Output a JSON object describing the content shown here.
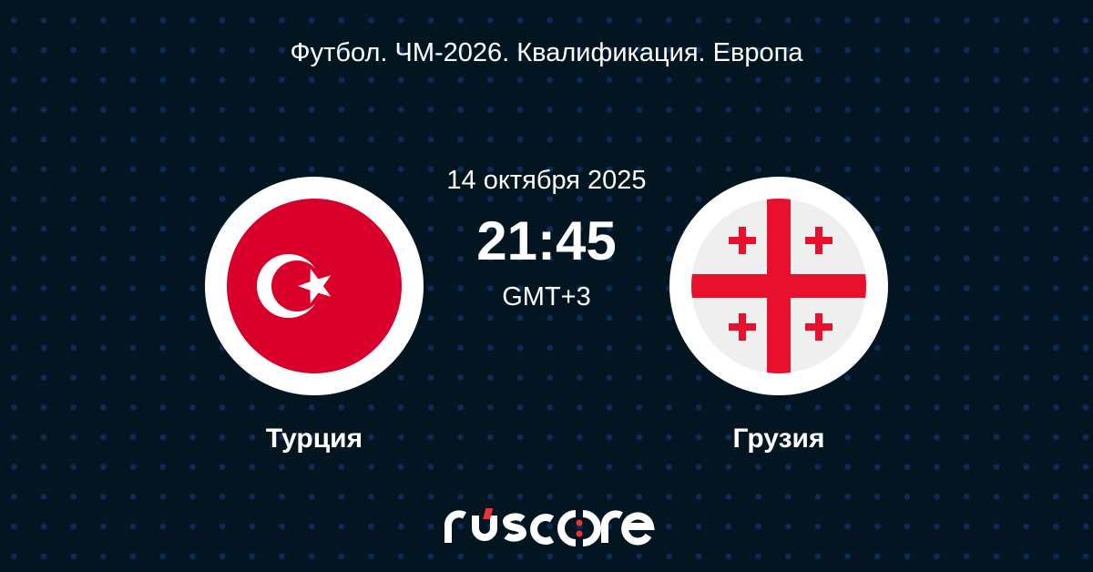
{
  "competition": "Футбол. ЧМ-2026. Квалификация. Европа",
  "match": {
    "date": "14 октября 2025",
    "time": "21:45",
    "timezone": "GMT+3",
    "home_team": {
      "name": "Турция",
      "flag": "turkey-flag"
    },
    "away_team": {
      "name": "Грузия",
      "flag": "georgia-flag"
    }
  },
  "brand": {
    "logo_text": "ruscore",
    "accent_color": "#e8323c"
  },
  "colors": {
    "background": "#021520",
    "dots": "#0d2a58",
    "turkey_red": "#d8002b",
    "georgia_red": "#e8112d"
  }
}
